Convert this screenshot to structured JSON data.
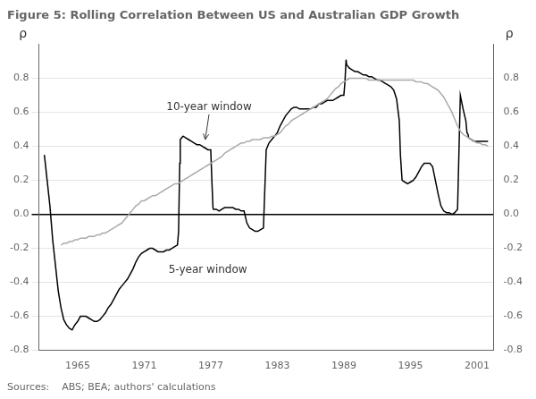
{
  "chart_data": {
    "type": "line",
    "title": "Figure 5: Rolling Correlation Between US and Australian GDP Growth",
    "source": "Sources:    ABS; BEA; authors' calculations",
    "y_label": "ρ",
    "y2_label": "ρ",
    "xlim": [
      1961.5,
      2002.5
    ],
    "xticks": [
      1965,
      1971,
      1977,
      1983,
      1989,
      1995,
      2001
    ],
    "ylim": [
      -0.8,
      1.0
    ],
    "yticks": [
      -0.8,
      -0.6,
      -0.4,
      -0.2,
      {
        "value": 0.0,
        "label": "0.0"
      },
      0.2,
      0.4,
      0.6,
      0.8
    ],
    "y2lim": [
      -0.8,
      1.0
    ],
    "y2ticks": [
      -0.8,
      -0.6,
      -0.4,
      -0.2,
      {
        "value": 0.0,
        "label": "0.0"
      },
      0.2,
      0.4,
      0.6,
      0.8
    ],
    "grid": "y",
    "annotations": [
      {
        "text": "10-year window",
        "x": 1973.0,
        "y": 0.63,
        "arrow_x": 1976.5,
        "arrow_y": 0.44
      },
      {
        "text": "5-year window",
        "x": 1973.2,
        "y": -0.33
      }
    ],
    "series": [
      {
        "color": "#aaaaaa",
        "x": [
          1963.5,
          1963.75,
          1964.0,
          1964.25,
          1964.5,
          1964.75,
          1965.0,
          1965.25,
          1965.5,
          1965.75,
          1966.0,
          1966.25,
          1966.5,
          1966.75,
          1967.0,
          1967.25,
          1967.5,
          1967.75,
          1968.0,
          1968.25,
          1968.5,
          1968.75,
          1969.0,
          1969.25,
          1969.5,
          1969.75,
          1970.0,
          1970.25,
          1970.5,
          1970.75,
          1971.0,
          1971.25,
          1971.5,
          1971.75,
          1972.0,
          1972.25,
          1972.5,
          1972.75,
          1973.0,
          1973.25,
          1973.5,
          1973.75,
          1974.0,
          1974.25,
          1974.5,
          1974.75,
          1975.0,
          1975.25,
          1975.5,
          1975.75,
          1976.0,
          1976.25,
          1976.5,
          1976.75,
          1977.0,
          1977.25,
          1977.5,
          1977.75,
          1978.0,
          1978.25,
          1978.5,
          1978.75,
          1979.0,
          1979.25,
          1979.5,
          1979.75,
          1980.0,
          1980.25,
          1980.5,
          1980.75,
          1981.0,
          1981.25,
          1981.5,
          1981.75,
          1982.0,
          1982.25,
          1982.5,
          1982.75,
          1983.0,
          1983.25,
          1983.5,
          1983.75,
          1984.0,
          1984.25,
          1984.5,
          1984.75,
          1985.0,
          1985.25,
          1985.5,
          1985.75,
          1986.0,
          1986.25,
          1986.5,
          1986.75,
          1987.0,
          1987.25,
          1987.5,
          1987.75,
          1988.0,
          1988.25,
          1988.5,
          1988.75,
          1989.0,
          1989.25,
          1989.5,
          1989.75,
          1990.0,
          1990.25,
          1990.5,
          1990.75,
          1991.0,
          1991.25,
          1991.5,
          1991.75,
          1992.0,
          1992.25,
          1992.5,
          1992.75,
          1993.0,
          1993.25,
          1993.5,
          1993.75,
          1994.0,
          1994.25,
          1994.5,
          1994.75,
          1995.0,
          1995.25,
          1995.5,
          1995.75,
          1996.0,
          1996.25,
          1996.5,
          1996.75,
          1997.0,
          1997.25,
          1997.5,
          1997.75,
          1998.0,
          1998.25,
          1998.5,
          1998.75,
          1999.0,
          1999.25,
          1999.5,
          1999.75,
          2000.0,
          2000.25,
          2000.5,
          2000.75,
          2001.0,
          2001.25,
          2001.5,
          2001.75,
          2002.0
        ],
        "values": [
          -0.18,
          -0.17,
          -0.17,
          -0.16,
          -0.16,
          -0.15,
          -0.15,
          -0.14,
          -0.14,
          -0.14,
          -0.13,
          -0.13,
          -0.13,
          -0.12,
          -0.12,
          -0.11,
          -0.11,
          -0.1,
          -0.09,
          -0.08,
          -0.07,
          -0.06,
          -0.05,
          -0.03,
          -0.01,
          0.01,
          0.03,
          0.05,
          0.06,
          0.08,
          0.08,
          0.09,
          0.1,
          0.11,
          0.11,
          0.12,
          0.13,
          0.14,
          0.15,
          0.16,
          0.17,
          0.18,
          0.18,
          0.19,
          0.2,
          0.21,
          0.22,
          0.23,
          0.24,
          0.25,
          0.26,
          0.27,
          0.28,
          0.29,
          0.3,
          0.31,
          0.32,
          0.33,
          0.34,
          0.36,
          0.37,
          0.38,
          0.39,
          0.4,
          0.41,
          0.42,
          0.42,
          0.43,
          0.43,
          0.44,
          0.44,
          0.44,
          0.44,
          0.45,
          0.45,
          0.45,
          0.46,
          0.46,
          0.47,
          0.48,
          0.5,
          0.52,
          0.53,
          0.55,
          0.56,
          0.57,
          0.58,
          0.59,
          0.6,
          0.61,
          0.62,
          0.63,
          0.64,
          0.65,
          0.66,
          0.67,
          0.68,
          0.7,
          0.72,
          0.74,
          0.75,
          0.77,
          0.78,
          0.79,
          0.8,
          0.8,
          0.8,
          0.8,
          0.8,
          0.8,
          0.8,
          0.79,
          0.79,
          0.79,
          0.79,
          0.79,
          0.79,
          0.79,
          0.79,
          0.79,
          0.79,
          0.79,
          0.79,
          0.79,
          0.79,
          0.79,
          0.79,
          0.79,
          0.78,
          0.78,
          0.78,
          0.77,
          0.77,
          0.76,
          0.75,
          0.74,
          0.73,
          0.71,
          0.69,
          0.66,
          0.63,
          0.6,
          0.56,
          0.52,
          0.49,
          0.47,
          0.46,
          0.45,
          0.44,
          0.43,
          0.42,
          0.42,
          0.41,
          0.41,
          0.4
        ]
      },
      {
        "color": "#000000",
        "x": [
          1962.0,
          1962.25,
          1962.5,
          1962.75,
          1963.0,
          1963.25,
          1963.5,
          1963.75,
          1964.0,
          1964.25,
          1964.5,
          1964.75,
          1965.0,
          1965.25,
          1965.5,
          1965.75,
          1966.0,
          1966.25,
          1966.5,
          1966.75,
          1967.0,
          1967.25,
          1967.5,
          1967.75,
          1968.0,
          1968.25,
          1968.5,
          1968.75,
          1969.0,
          1969.25,
          1969.5,
          1969.75,
          1970.0,
          1970.25,
          1970.5,
          1970.75,
          1971.0,
          1971.25,
          1971.5,
          1971.75,
          1972.0,
          1972.25,
          1972.5,
          1972.75,
          1973.0,
          1973.25,
          1973.5,
          1973.75,
          1974.0,
          1974.1,
          1974.2,
          1974.25,
          1974.5,
          1974.75,
          1975.0,
          1975.25,
          1975.5,
          1975.75,
          1976.0,
          1976.25,
          1976.5,
          1976.75,
          1977.0,
          1977.1,
          1977.2,
          1977.25,
          1977.5,
          1977.75,
          1978.0,
          1978.25,
          1978.5,
          1978.75,
          1979.0,
          1979.25,
          1979.5,
          1979.75,
          1980.0,
          1980.25,
          1980.5,
          1980.75,
          1981.0,
          1981.25,
          1981.5,
          1981.75,
          1982.0,
          1982.25,
          1982.5,
          1982.75,
          1983.0,
          1983.25,
          1983.5,
          1983.75,
          1984.0,
          1984.25,
          1984.5,
          1984.75,
          1985.0,
          1985.25,
          1985.5,
          1985.75,
          1986.0,
          1986.25,
          1986.5,
          1986.75,
          1987.0,
          1987.25,
          1987.5,
          1987.75,
          1988.0,
          1988.25,
          1988.5,
          1988.75,
          1989.0,
          1989.1,
          1989.2,
          1989.25,
          1989.5,
          1989.75,
          1990.0,
          1990.25,
          1990.5,
          1990.75,
          1991.0,
          1991.25,
          1991.5,
          1991.75,
          1992.0,
          1992.25,
          1992.5,
          1992.75,
          1993.0,
          1993.25,
          1993.5,
          1993.75,
          1994.0,
          1994.1,
          1994.2,
          1994.25,
          1994.5,
          1994.75,
          1995.0,
          1995.25,
          1995.5,
          1995.75,
          1996.0,
          1996.25,
          1996.5,
          1996.75,
          1997.0,
          1997.25,
          1997.5,
          1997.75,
          1998.0,
          1998.25,
          1998.5,
          1998.75,
          1999.0,
          1999.25,
          1999.5,
          1999.75,
          2000.0,
          2000.1,
          2000.2,
          2000.25,
          2000.5,
          2000.75,
          2001.0,
          2001.25,
          2001.5,
          2001.75,
          2002.0
        ],
        "values": [
          0.35,
          0.2,
          0.05,
          -0.15,
          -0.3,
          -0.45,
          -0.55,
          -0.62,
          -0.65,
          -0.67,
          -0.68,
          -0.65,
          -0.63,
          -0.6,
          -0.6,
          -0.6,
          -0.61,
          -0.62,
          -0.63,
          -0.63,
          -0.62,
          -0.6,
          -0.58,
          -0.55,
          -0.53,
          -0.5,
          -0.47,
          -0.44,
          -0.42,
          -0.4,
          -0.38,
          -0.35,
          -0.32,
          -0.28,
          -0.25,
          -0.23,
          -0.22,
          -0.21,
          -0.2,
          -0.2,
          -0.21,
          -0.22,
          -0.22,
          -0.22,
          -0.21,
          -0.21,
          -0.2,
          -0.19,
          -0.18,
          -0.1,
          0.3,
          0.44,
          0.46,
          0.45,
          0.44,
          0.43,
          0.42,
          0.41,
          0.41,
          0.4,
          0.39,
          0.38,
          0.38,
          0.2,
          0.04,
          0.03,
          0.03,
          0.02,
          0.03,
          0.04,
          0.04,
          0.04,
          0.04,
          0.03,
          0.03,
          0.02,
          0.02,
          -0.05,
          -0.08,
          -0.09,
          -0.1,
          -0.1,
          -0.09,
          -0.08,
          0.38,
          0.42,
          0.44,
          0.46,
          0.48,
          0.52,
          0.55,
          0.58,
          0.6,
          0.62,
          0.63,
          0.63,
          0.62,
          0.62,
          0.62,
          0.62,
          0.62,
          0.63,
          0.63,
          0.65,
          0.65,
          0.66,
          0.67,
          0.67,
          0.67,
          0.68,
          0.69,
          0.7,
          0.7,
          0.78,
          0.91,
          0.88,
          0.86,
          0.85,
          0.84,
          0.84,
          0.83,
          0.82,
          0.82,
          0.81,
          0.81,
          0.8,
          0.79,
          0.79,
          0.78,
          0.77,
          0.76,
          0.75,
          0.73,
          0.68,
          0.55,
          0.35,
          0.25,
          0.2,
          0.19,
          0.18,
          0.19,
          0.2,
          0.22,
          0.25,
          0.28,
          0.3,
          0.3,
          0.3,
          0.28,
          0.2,
          0.12,
          0.05,
          0.02,
          0.01,
          0.01,
          0.0,
          0.01,
          0.03,
          0.7,
          0.62,
          0.55,
          0.48,
          0.47,
          0.45,
          0.44,
          0.43,
          0.43,
          0.43,
          0.43,
          0.43,
          0.43
        ]
      }
    ]
  }
}
